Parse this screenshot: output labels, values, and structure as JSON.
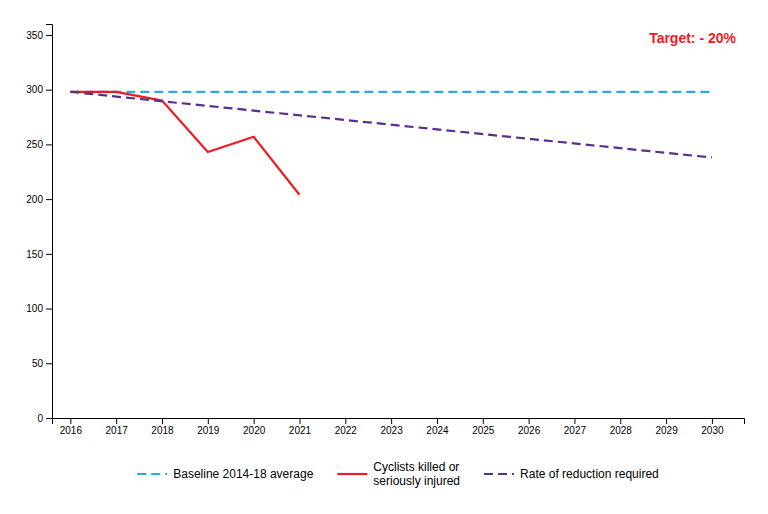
{
  "chart_data": {
    "type": "line",
    "series": [
      {
        "name": "Baseline 2014-18 average",
        "color": "#29ABE2",
        "line_style": "dashed",
        "x": [
          2016,
          2030
        ],
        "values": [
          298,
          298
        ]
      },
      {
        "name": "Cyclists killed or\nseriously injured",
        "color": "#ED1C24",
        "line_style": "solid",
        "x": [
          2016,
          2017,
          2018,
          2019,
          2020,
          2021
        ],
        "values": [
          298,
          298,
          290,
          243,
          257,
          204
        ]
      },
      {
        "name": "Rate of reduction required",
        "color": "#5B2D8E",
        "line_style": "dashed",
        "x": [
          2016,
          2030
        ],
        "values": [
          298,
          238
        ]
      }
    ],
    "annotations": [
      {
        "text": "Target: - 20%",
        "color": "#ED1C24"
      }
    ],
    "xlim": [
      2015.6,
      2030.7
    ],
    "xticks": [
      2016,
      2017,
      2018,
      2019,
      2020,
      2021,
      2022,
      2023,
      2024,
      2025,
      2026,
      2027,
      2028,
      2029,
      2030
    ],
    "ylim": [
      0,
      360
    ],
    "yticks": [
      0,
      50,
      100,
      150,
      200,
      250,
      300,
      350
    ],
    "grid": false,
    "legend": "bottom"
  }
}
